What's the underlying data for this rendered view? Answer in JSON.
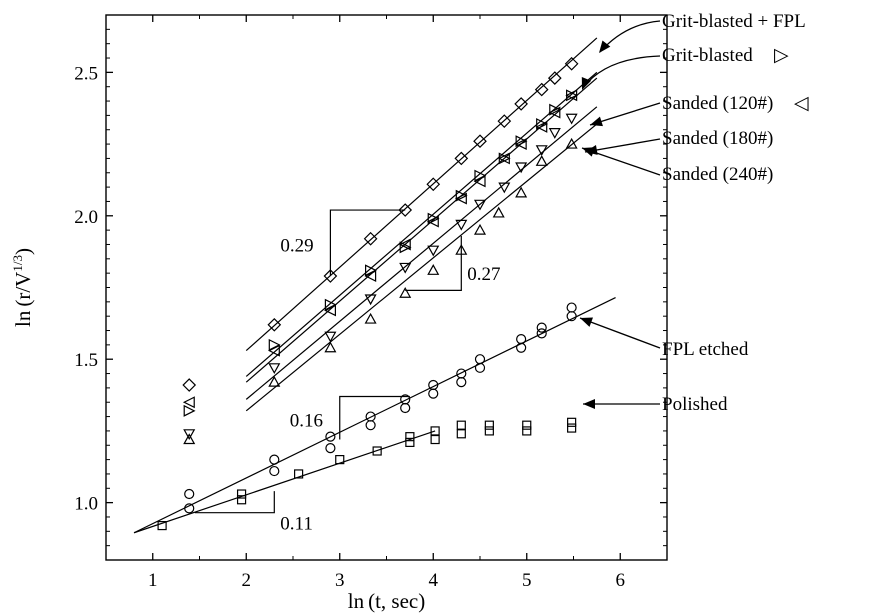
{
  "chart_data": {
    "type": "scatter",
    "title": "",
    "xlabel_main": "ln",
    "xlabel_paren": "(t, sec)",
    "ylabel_main": "ln",
    "ylabel_paren": "(r/V",
    "ylabel_exp": "1/3",
    "ylabel_close": ")",
    "xlim": [
      0.5,
      6.5
    ],
    "ylim": [
      0.8,
      2.7
    ],
    "x_ticks": [
      1,
      2,
      3,
      4,
      5,
      6
    ],
    "x_tick_labels": [
      "1",
      "2",
      "3",
      "4",
      "5",
      "6"
    ],
    "y_ticks": [
      1.0,
      1.5,
      2.0,
      2.5
    ],
    "y_tick_labels": [
      "1.0",
      "1.5",
      "2.0",
      "2.5"
    ],
    "grid": false,
    "series": [
      {
        "name": "Grit-blasted + FPL",
        "marker": "diamond",
        "x": [
          1.39,
          2.3,
          2.9,
          3.33,
          3.7,
          4.0,
          4.3,
          4.5,
          4.76,
          4.94,
          5.16,
          5.3,
          5.48
        ],
        "y": [
          1.41,
          1.62,
          1.79,
          1.92,
          2.02,
          2.11,
          2.2,
          2.26,
          2.33,
          2.39,
          2.44,
          2.48,
          2.53
        ],
        "fit": {
          "x": [
            2.0,
            5.75
          ],
          "y": [
            1.53,
            2.62
          ]
        }
      },
      {
        "name": "Grit-blasted",
        "marker": "triangle-right",
        "x": [
          1.39,
          2.3,
          2.9,
          3.33,
          3.7,
          4.0,
          4.3,
          4.5,
          4.76,
          4.94,
          5.16,
          5.3,
          5.48
        ],
        "y": [
          1.32,
          1.55,
          1.69,
          1.81,
          1.89,
          1.99,
          2.07,
          2.14,
          2.2,
          2.26,
          2.32,
          2.37,
          2.42
        ],
        "fit": {
          "x": [
            2.0,
            5.75
          ],
          "y": [
            1.44,
            2.5
          ]
        }
      },
      {
        "name": "Sanded (120#)",
        "marker": "triangle-left",
        "x": [
          1.39,
          2.3,
          2.9,
          3.33,
          3.7,
          4.0,
          4.3,
          4.5,
          4.76,
          4.94,
          5.16,
          5.3,
          5.48
        ],
        "y": [
          1.35,
          1.53,
          1.67,
          1.79,
          1.9,
          1.98,
          2.06,
          2.12,
          2.2,
          2.25,
          2.31,
          2.36,
          2.42
        ],
        "fit": {
          "x": [
            2.0,
            5.75
          ],
          "y": [
            1.42,
            2.48
          ]
        }
      },
      {
        "name": "Sanded (180#)",
        "marker": "triangle-down",
        "x": [
          1.39,
          2.3,
          2.9,
          3.33,
          3.7,
          4.0,
          4.3,
          4.5,
          4.76,
          4.94,
          5.16,
          5.3,
          5.48
        ],
        "y": [
          1.24,
          1.47,
          1.58,
          1.71,
          1.82,
          1.88,
          1.97,
          2.04,
          2.1,
          2.17,
          2.23,
          2.29,
          2.34
        ],
        "fit": {
          "x": [
            2.0,
            5.75
          ],
          "y": [
            1.36,
            2.38
          ]
        }
      },
      {
        "name": "Sanded (240#)",
        "marker": "triangle-up",
        "x": [
          1.39,
          2.3,
          2.9,
          3.33,
          3.7,
          4.0,
          4.3,
          4.5,
          4.7,
          4.94,
          5.16,
          5.48
        ],
        "y": [
          1.22,
          1.42,
          1.54,
          1.64,
          1.73,
          1.81,
          1.88,
          1.95,
          2.01,
          2.08,
          2.19,
          2.25
        ],
        "fit": {
          "x": [
            2.0,
            5.75
          ],
          "y": [
            1.32,
            2.32
          ]
        }
      },
      {
        "name": "FPL etched",
        "marker": "circle",
        "x": [
          1.39,
          1.39,
          2.3,
          2.3,
          2.9,
          2.9,
          3.33,
          3.33,
          3.7,
          3.7,
          4.0,
          4.0,
          4.3,
          4.3,
          4.5,
          4.5,
          4.94,
          4.94,
          5.16,
          5.16,
          5.48,
          5.48
        ],
        "y": [
          0.98,
          1.03,
          1.11,
          1.15,
          1.19,
          1.23,
          1.27,
          1.3,
          1.33,
          1.36,
          1.38,
          1.41,
          1.42,
          1.45,
          1.47,
          1.5,
          1.54,
          1.57,
          1.59,
          1.61,
          1.65,
          1.68
        ],
        "fit": {
          "x": [
            0.8,
            5.95
          ],
          "y": [
            0.895,
            1.715
          ]
        }
      },
      {
        "name": "Polished",
        "marker": "square",
        "x": [
          1.1,
          1.95,
          1.95,
          2.56,
          3.0,
          3.4,
          3.75,
          3.75,
          4.02,
          4.02,
          4.3,
          4.3,
          4.6,
          4.6,
          5.0,
          5.0,
          5.48,
          5.48
        ],
        "y": [
          0.92,
          1.01,
          1.03,
          1.1,
          1.15,
          1.18,
          1.21,
          1.23,
          1.22,
          1.25,
          1.24,
          1.27,
          1.25,
          1.27,
          1.25,
          1.27,
          1.26,
          1.28
        ],
        "fit": {
          "x": [
            0.8,
            4.02
          ],
          "y": [
            0.895,
            1.25
          ]
        }
      }
    ],
    "legend_labels": [
      {
        "text": "Grit-blasted + FPL",
        "symbol": ""
      },
      {
        "text": "Grit-blasted",
        "symbol": "▷"
      },
      {
        "text": "Sanded (120#)",
        "symbol": "◁"
      },
      {
        "text": "Sanded (180#)",
        "symbol": ""
      },
      {
        "text": "Sanded (240#)",
        "symbol": ""
      },
      {
        "text": "FPL etched",
        "symbol": ""
      },
      {
        "text": "Polished",
        "symbol": ""
      }
    ],
    "slope_annotations": [
      "0.29",
      "0.27",
      "0.16",
      "0.11"
    ]
  }
}
